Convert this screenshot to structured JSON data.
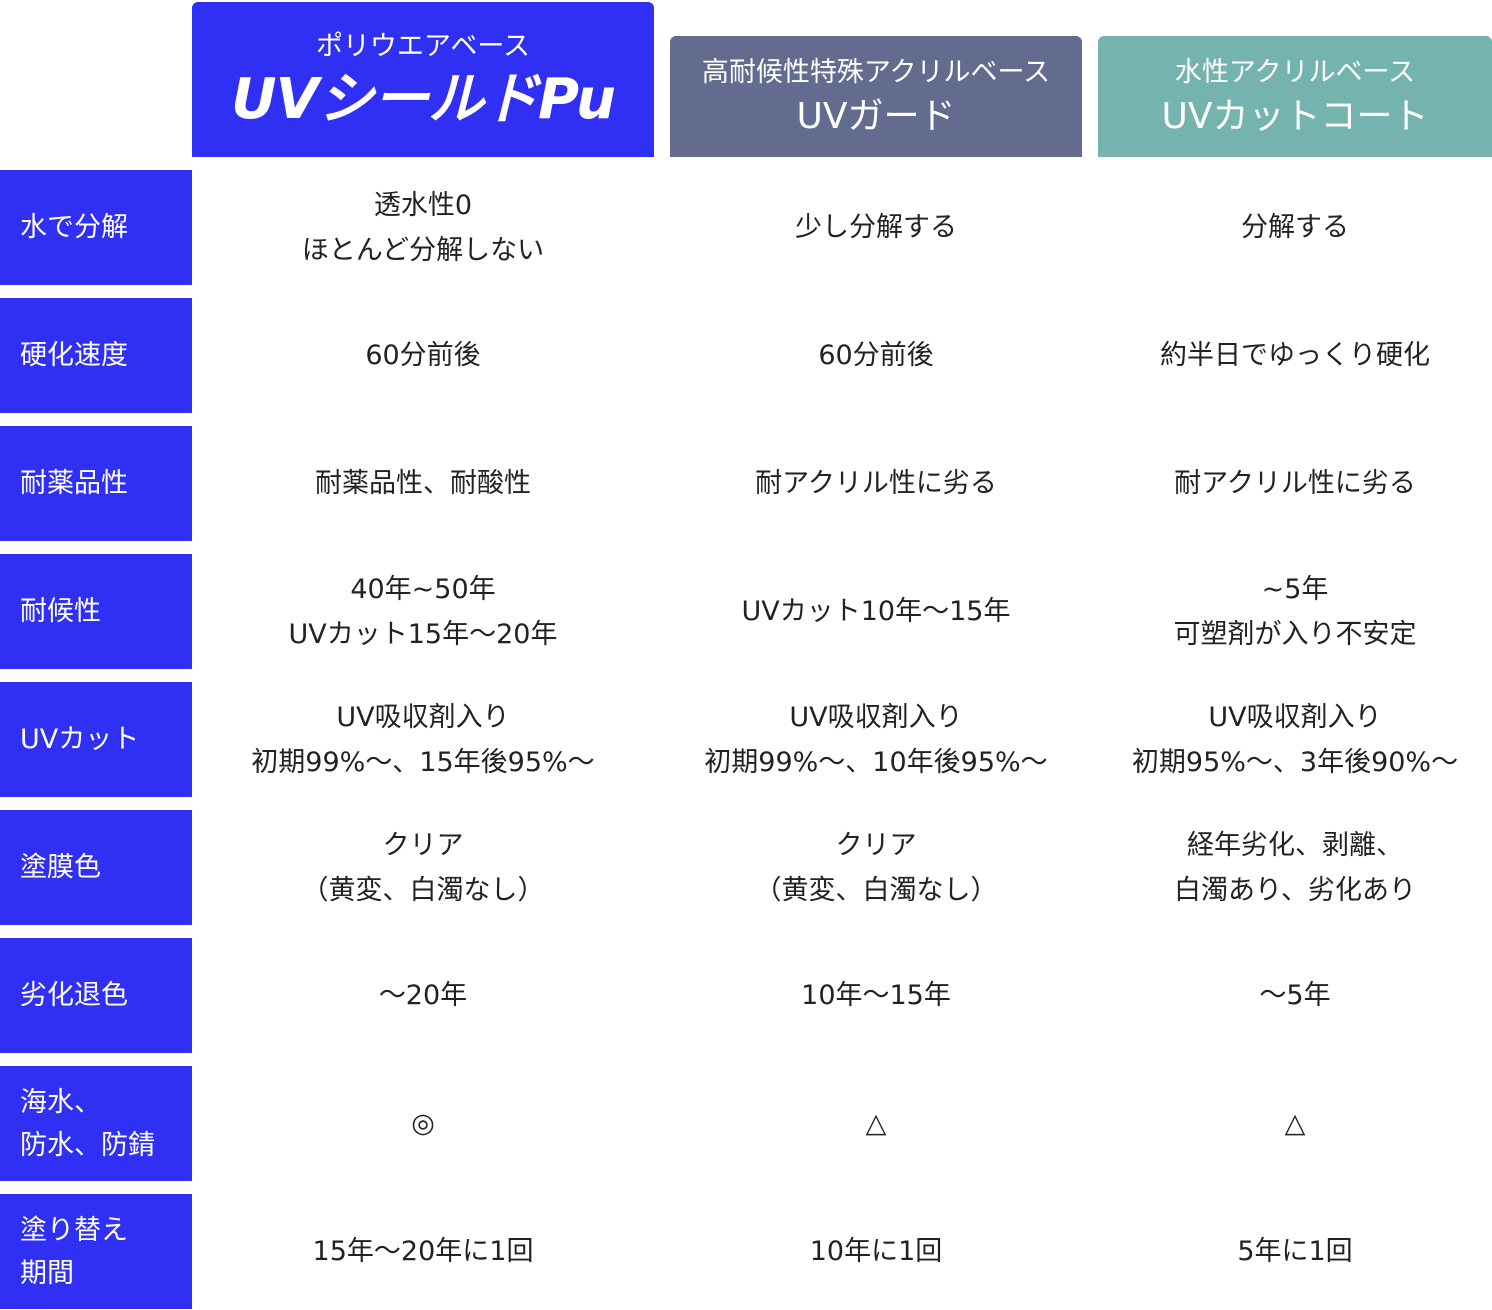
{
  "header": {
    "columns": [
      {
        "subtitle": "ポリウエアベース",
        "name": "UVシールドPu"
      },
      {
        "subtitle": "高耐候性特殊アクリルベース",
        "name": "UVガード"
      },
      {
        "subtitle": "水性アクリルベース",
        "name": "UVカットコート"
      }
    ]
  },
  "table": {
    "rows": [
      {
        "label": [
          "水で分解"
        ],
        "cells": [
          [
            "透水性0",
            "ほとんど分解しない"
          ],
          [
            "少し分解する"
          ],
          [
            "分解する"
          ]
        ]
      },
      {
        "label": [
          "硬化速度"
        ],
        "cells": [
          [
            "60分前後"
          ],
          [
            "60分前後"
          ],
          [
            "約半日でゆっくり硬化"
          ]
        ]
      },
      {
        "label": [
          "耐薬品性"
        ],
        "cells": [
          [
            "耐薬品性、耐酸性"
          ],
          [
            "耐アクリル性に劣る"
          ],
          [
            "耐アクリル性に劣る"
          ]
        ]
      },
      {
        "label": [
          "耐候性"
        ],
        "cells": [
          [
            "40年~50年",
            "UVカット15年〜20年"
          ],
          [
            "UVカット10年〜15年"
          ],
          [
            "~5年",
            "可塑剤が入り不安定"
          ]
        ]
      },
      {
        "label": [
          "UVカット"
        ],
        "cells": [
          [
            "UV吸収剤入り",
            "初期99%〜、15年後95%〜"
          ],
          [
            "UV吸収剤入り",
            "初期99%〜、10年後95%〜"
          ],
          [
            "UV吸収剤入り",
            "初期95%〜、3年後90%〜"
          ]
        ]
      },
      {
        "label": [
          "塗膜色"
        ],
        "cells": [
          [
            "クリア",
            "（黄変、白濁なし）"
          ],
          [
            "クリア",
            "（黄変、白濁なし）"
          ],
          [
            "経年劣化、剥離、",
            "白濁あり、劣化あり"
          ]
        ]
      },
      {
        "label": [
          "劣化退色"
        ],
        "cells": [
          [
            "〜20年"
          ],
          [
            "10年〜15年"
          ],
          [
            "〜5年"
          ]
        ]
      },
      {
        "label": [
          "海水、",
          "防水、防錆"
        ],
        "cells": [
          [
            "◎"
          ],
          [
            "△"
          ],
          [
            "△"
          ]
        ]
      },
      {
        "label": [
          "塗り替え",
          "期間"
        ],
        "cells": [
          [
            "15年〜20年に1回"
          ],
          [
            "10年に1回"
          ],
          [
            "5年に1回"
          ]
        ]
      }
    ]
  }
}
